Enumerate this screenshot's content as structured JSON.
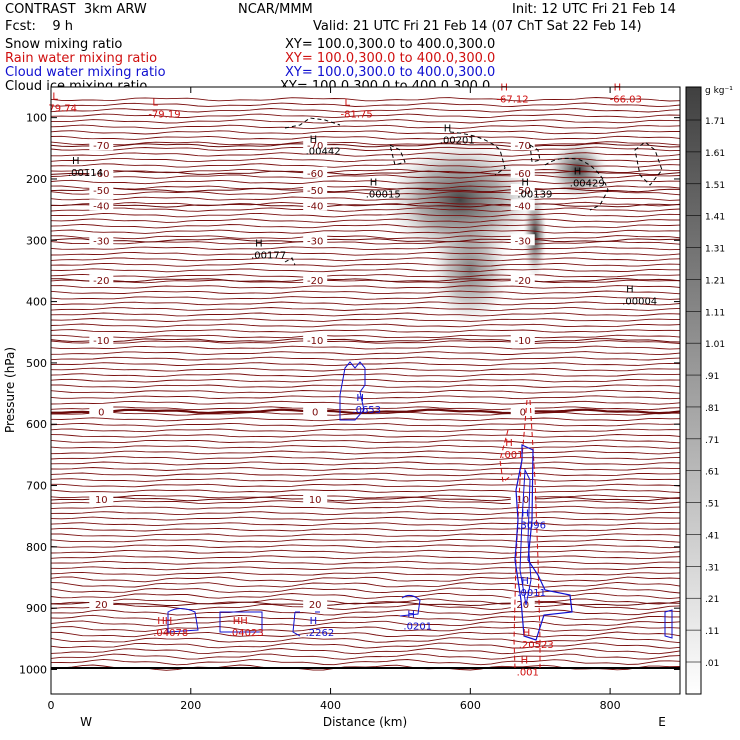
{
  "header": {
    "product": "CONTRAST  3km ARW",
    "org": "NCAR/MMM",
    "init": "Init: 12 UTC Fri 21 Feb 14",
    "fcst": "Fcst:    9 h",
    "valid": "Valid: 21 UTC Fri 21 Feb 14 (07 ChT Sat 22 Feb 14)",
    "fields": [
      {
        "label": "Snow mixing ratio",
        "xy": "XY= 100.0,300.0 to 400.0,300.0",
        "color": "#000000"
      },
      {
        "label": "Rain water mixing ratio",
        "xy": "XY= 100.0,300.0 to 400.0,300.0",
        "color": "#d01010"
      },
      {
        "label": "Cloud water mixing ratio",
        "xy": "XY= 100.0,300.0 to 400.0,300.0",
        "color": "#1010d0"
      },
      {
        "label": "Cloud ice mixing ratio",
        "xy": "XY= 100.0,300.0 to 400.0,300.0",
        "color": "#000000"
      }
    ]
  },
  "chart_data": {
    "type": "contour",
    "xlabel": "Distance (km)",
    "ylabel": "Pressure (hPa)",
    "xlim": [
      0,
      900
    ],
    "ylim": [
      1040,
      50
    ],
    "x_ticks": [
      0,
      200,
      400,
      600,
      800
    ],
    "y_ticks": [
      100,
      200,
      300,
      400,
      500,
      600,
      700,
      800,
      900,
      1000
    ],
    "x_end_labels": {
      "west": "W",
      "east": "E"
    },
    "colorbar": {
      "unit": "g kg⁻¹",
      "labels": [
        "1.71",
        "1.61",
        "1.51",
        "1.41",
        "1.31",
        "1.21",
        "1.11",
        "1.01",
        ".91",
        ".81",
        ".71",
        ".61",
        ".51",
        ".41",
        ".31",
        ".21",
        ".11",
        ".01"
      ]
    },
    "isotherms": [
      {
        "value": -70,
        "label": "-70",
        "p": 145
      },
      {
        "value": -60,
        "label": "-60",
        "p": 190
      },
      {
        "value": -50,
        "label": "-50",
        "p": 218
      },
      {
        "value": -40,
        "label": "-40",
        "p": 243
      },
      {
        "value": -30,
        "label": "-30",
        "p": 300
      },
      {
        "value": -20,
        "label": "-20",
        "p": 365
      },
      {
        "value": -10,
        "label": "-10",
        "p": 463
      },
      {
        "value": 0,
        "label": "0",
        "p": 579
      },
      {
        "value": 10,
        "label": "10",
        "p": 722
      },
      {
        "value": 20,
        "label": "20",
        "p": 893
      }
    ],
    "extrema": [
      {
        "kind": "L",
        "value": "79.74",
        "x": 2,
        "p": 90,
        "color": "#d01010"
      },
      {
        "kind": "L",
        "value": "-79.19",
        "x": 145,
        "p": 100,
        "color": "#d01010"
      },
      {
        "kind": "L",
        "value": "-81.75",
        "x": 420,
        "p": 100,
        "color": "#d01010"
      },
      {
        "kind": "H",
        "value": "-67.12",
        "x": 643,
        "p": 75,
        "color": "#d01010"
      },
      {
        "kind": "H",
        "value": "-66.03",
        "x": 805,
        "p": 75,
        "color": "#d01010"
      },
      {
        "kind": "H",
        "value": ".00442",
        "x": 370,
        "p": 160,
        "color": "#000000"
      },
      {
        "kind": "H",
        "value": ".00201",
        "x": 562,
        "p": 142,
        "color": "#000000"
      },
      {
        "kind": "H",
        "value": ".00114",
        "x": 30,
        "p": 195,
        "color": "#000000"
      },
      {
        "kind": "H",
        "value": ".00015",
        "x": 456,
        "p": 230,
        "color": "#000000"
      },
      {
        "kind": "H",
        "value": ".00139",
        "x": 673,
        "p": 230,
        "color": "#000000"
      },
      {
        "kind": "H",
        "value": ".00429",
        "x": 748,
        "p": 212,
        "color": "#000000"
      },
      {
        "kind": "H",
        "value": ".00177",
        "x": 292,
        "p": 330,
        "color": "#000000"
      },
      {
        "kind": "H",
        "value": ".00004",
        "x": 823,
        "p": 405,
        "color": "#000000"
      },
      {
        "kind": "H",
        "value": ".0653",
        "x": 437,
        "p": 582,
        "color": "#1010d0"
      },
      {
        "kind": "H",
        "value": ".001",
        "x": 650,
        "p": 655,
        "color": "#d01010"
      },
      {
        "kind": "H",
        "value": ".3096",
        "x": 673,
        "p": 770,
        "color": "#1010d0"
      },
      {
        "kind": "H",
        "value": ".0011",
        "x": 673,
        "p": 880,
        "color": "#1010d0"
      },
      {
        "kind": "HH",
        "value": ".04078",
        "x": 152,
        "p": 945,
        "color": "#d01010"
      },
      {
        "kind": "HH",
        "value": ".04023",
        "x": 260,
        "p": 945,
        "color": "#d01010"
      },
      {
        "kind": "H",
        "value": ".2262",
        "x": 370,
        "p": 945,
        "color": "#1010d0"
      },
      {
        "kind": "H",
        "value": ".0201",
        "x": 510,
        "p": 935,
        "color": "#1010d0"
      },
      {
        "kind": "H",
        "value": ".20523",
        "x": 675,
        "p": 965,
        "color": "#d01010"
      },
      {
        "kind": "H",
        "value": ".001",
        "x": 672,
        "p": 1010,
        "color": "#d01010"
      }
    ]
  }
}
